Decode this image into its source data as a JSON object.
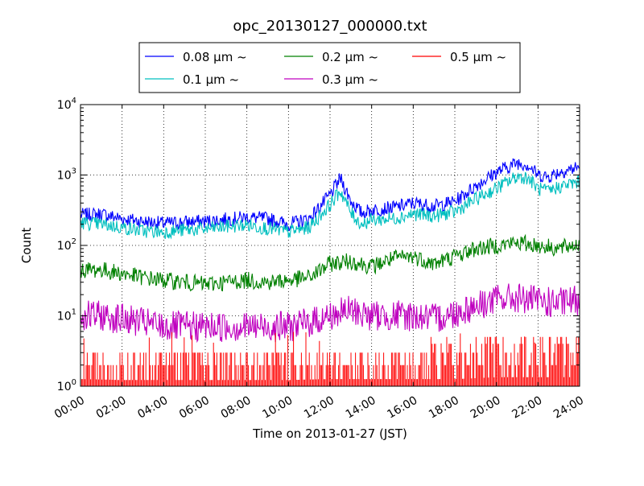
{
  "chart_data": {
    "type": "line",
    "title": "opc_20130127_000000.txt",
    "xlabel": "Time on 2013-01-27 (JST)",
    "ylabel": "Count",
    "yscale": "log",
    "ylim": [
      1,
      10000
    ],
    "xlim": [
      "00:00",
      "24:00"
    ],
    "grid": true,
    "legend_position": "top-center",
    "x_ticks": [
      "00:00",
      "02:00",
      "04:00",
      "06:00",
      "08:00",
      "10:00",
      "12:00",
      "14:00",
      "16:00",
      "18:00",
      "20:00",
      "22:00",
      "24:00"
    ],
    "y_ticks": [
      {
        "base": "10",
        "exp": "0",
        "value": 1
      },
      {
        "base": "10",
        "exp": "1",
        "value": 10
      },
      {
        "base": "10",
        "exp": "2",
        "value": 100
      },
      {
        "base": "10",
        "exp": "3",
        "value": 1000
      },
      {
        "base": "10",
        "exp": "4",
        "value": 10000
      }
    ],
    "series": [
      {
        "name": "0.08 μm ~",
        "color": "#0000ff",
        "points": [
          [
            "00:00",
            270
          ],
          [
            "01:00",
            280
          ],
          [
            "02:00",
            240
          ],
          [
            "03:00",
            220
          ],
          [
            "04:00",
            205
          ],
          [
            "05:00",
            215
          ],
          [
            "06:00",
            220
          ],
          [
            "07:00",
            235
          ],
          [
            "08:00",
            250
          ],
          [
            "09:00",
            240
          ],
          [
            "10:00",
            200
          ],
          [
            "11:00",
            240
          ],
          [
            "12:00",
            520
          ],
          [
            "12:30",
            900
          ],
          [
            "13:00",
            430
          ],
          [
            "13:30",
            290
          ],
          [
            "14:00",
            320
          ],
          [
            "15:00",
            340
          ],
          [
            "16:00",
            400
          ],
          [
            "17:00",
            360
          ],
          [
            "18:00",
            420
          ],
          [
            "19:00",
            700
          ],
          [
            "20:00",
            1100
          ],
          [
            "21:00",
            1500
          ],
          [
            "21:30",
            1400
          ],
          [
            "22:00",
            1000
          ],
          [
            "22:30",
            950
          ],
          [
            "23:00",
            1100
          ],
          [
            "24:00",
            1300
          ]
        ]
      },
      {
        "name": "0.1 μm ~",
        "color": "#00bfbf",
        "points": [
          [
            "00:00",
            210
          ],
          [
            "01:00",
            200
          ],
          [
            "02:00",
            180
          ],
          [
            "03:00",
            160
          ],
          [
            "04:00",
            155
          ],
          [
            "05:00",
            165
          ],
          [
            "06:00",
            170
          ],
          [
            "07:00",
            185
          ],
          [
            "08:00",
            195
          ],
          [
            "09:00",
            175
          ],
          [
            "10:00",
            155
          ],
          [
            "11:00",
            180
          ],
          [
            "12:00",
            380
          ],
          [
            "12:30",
            600
          ],
          [
            "13:00",
            290
          ],
          [
            "13:30",
            200
          ],
          [
            "14:00",
            230
          ],
          [
            "15:00",
            240
          ],
          [
            "16:00",
            280
          ],
          [
            "17:00",
            260
          ],
          [
            "18:00",
            300
          ],
          [
            "19:00",
            450
          ],
          [
            "20:00",
            650
          ],
          [
            "21:00",
            950
          ],
          [
            "21:30",
            920
          ],
          [
            "22:00",
            640
          ],
          [
            "22:30",
            580
          ],
          [
            "23:00",
            680
          ],
          [
            "24:00",
            800
          ]
        ]
      },
      {
        "name": "0.2 μm ~",
        "color": "#008000",
        "points": [
          [
            "00:00",
            45
          ],
          [
            "01:00",
            45
          ],
          [
            "02:00",
            40
          ],
          [
            "03:00",
            35
          ],
          [
            "04:00",
            32
          ],
          [
            "05:00",
            30
          ],
          [
            "06:00",
            28
          ],
          [
            "07:00",
            30
          ],
          [
            "08:00",
            32
          ],
          [
            "09:00",
            30
          ],
          [
            "10:00",
            32
          ],
          [
            "11:00",
            35
          ],
          [
            "12:00",
            55
          ],
          [
            "13:00",
            60
          ],
          [
            "14:00",
            50
          ],
          [
            "15:00",
            65
          ],
          [
            "16:00",
            70
          ],
          [
            "17:00",
            55
          ],
          [
            "18:00",
            70
          ],
          [
            "19:00",
            90
          ],
          [
            "20:00",
            100
          ],
          [
            "21:00",
            110
          ],
          [
            "22:00",
            100
          ],
          [
            "23:00",
            90
          ],
          [
            "24:00",
            105
          ]
        ]
      },
      {
        "name": "0.3 μm ~",
        "color": "#bf00bf",
        "points": [
          [
            "00:00",
            10
          ],
          [
            "01:00",
            10
          ],
          [
            "02:00",
            9
          ],
          [
            "03:00",
            8
          ],
          [
            "04:00",
            7
          ],
          [
            "05:00",
            7
          ],
          [
            "06:00",
            7
          ],
          [
            "07:00",
            7
          ],
          [
            "08:00",
            7
          ],
          [
            "09:00",
            7
          ],
          [
            "10:00",
            7
          ],
          [
            "11:00",
            8
          ],
          [
            "12:00",
            10
          ],
          [
            "13:00",
            12
          ],
          [
            "14:00",
            10
          ],
          [
            "15:00",
            10
          ],
          [
            "16:00",
            10
          ],
          [
            "17:00",
            9
          ],
          [
            "18:00",
            11
          ],
          [
            "19:00",
            14
          ],
          [
            "20:00",
            17
          ],
          [
            "21:00",
            18
          ],
          [
            "22:00",
            16
          ],
          [
            "23:00",
            15
          ],
          [
            "24:00",
            17
          ]
        ]
      },
      {
        "name": "0.5 μm ~",
        "color": "#ff0000",
        "points": [
          [
            "00:00",
            1.6
          ],
          [
            "02:00",
            1.5
          ],
          [
            "04:00",
            1.5
          ],
          [
            "06:00",
            1.5
          ],
          [
            "08:00",
            1.5
          ],
          [
            "10:00",
            1.5
          ],
          [
            "12:00",
            1.6
          ],
          [
            "14:00",
            1.6
          ],
          [
            "16:00",
            1.6
          ],
          [
            "18:00",
            1.6
          ],
          [
            "20:00",
            1.8
          ],
          [
            "22:00",
            1.8
          ],
          [
            "24:00",
            1.8
          ]
        ]
      }
    ]
  }
}
